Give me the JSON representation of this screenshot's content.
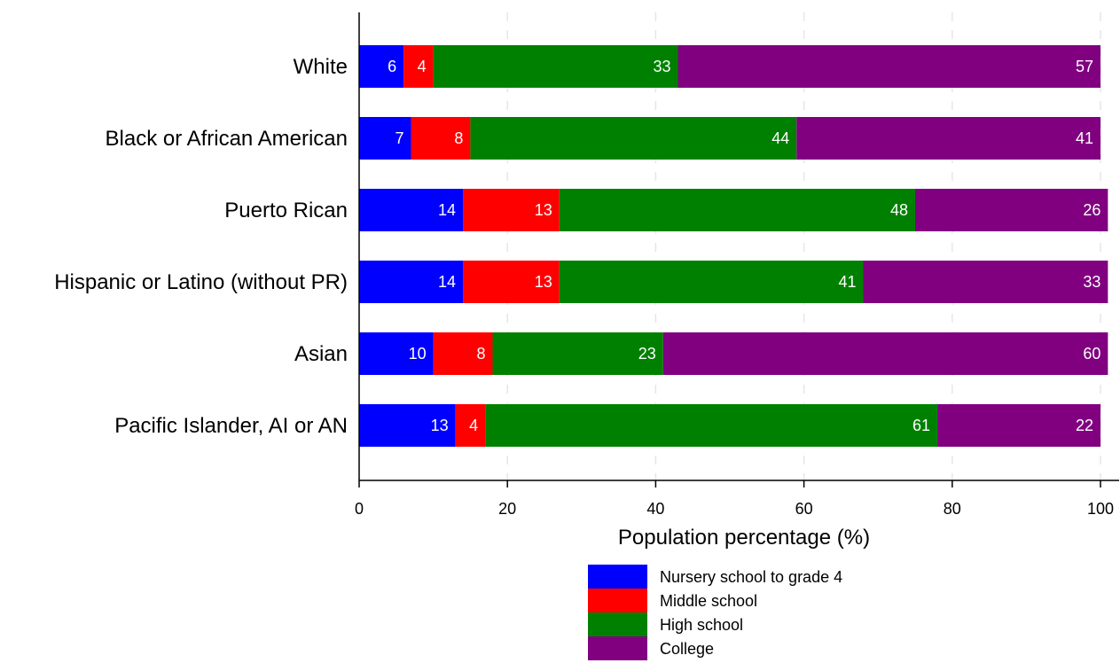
{
  "chart_data": {
    "type": "bar",
    "orientation": "horizontal",
    "stacked": true,
    "categories": [
      "White",
      "Black or African American",
      "Puerto Rican",
      "Hispanic or Latino (without PR)",
      "Asian",
      "Pacific Islander, AI or AN"
    ],
    "series": [
      {
        "name": "Nursery school to grade 4",
        "color": "#0000ff",
        "values": [
          6,
          7,
          14,
          14,
          10,
          13
        ]
      },
      {
        "name": "Middle school",
        "color": "#ff0000",
        "values": [
          4,
          8,
          13,
          13,
          8,
          4
        ]
      },
      {
        "name": "High school",
        "color": "#008000",
        "values": [
          33,
          44,
          48,
          41,
          23,
          61
        ]
      },
      {
        "name": "College",
        "color": "#800080",
        "values": [
          57,
          41,
          26,
          33,
          60,
          22
        ]
      }
    ],
    "xlabel": "Population percentage (%)",
    "ylabel": "",
    "xlim": [
      0,
      100
    ],
    "xticks": [
      0,
      20,
      40,
      60,
      80,
      100
    ],
    "grid": "vertical dashed",
    "legend_position": "bottom"
  }
}
